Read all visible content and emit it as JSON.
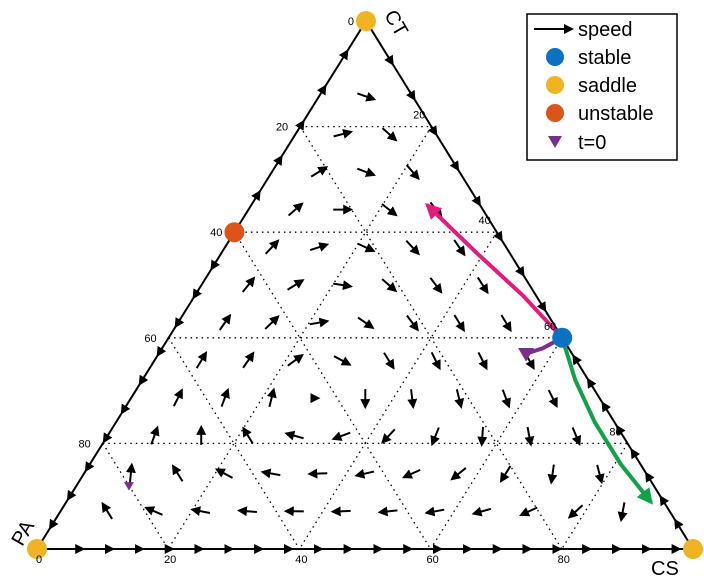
{
  "chart_data": {
    "type": "ternary",
    "axes": {
      "top": "CT",
      "left": "PA",
      "right": "CS",
      "ticks": [
        20,
        40,
        60,
        80
      ],
      "left_edge_ticks": [
        "0",
        "20",
        "40",
        "60",
        "80"
      ],
      "right_edge_ticks": [
        "80",
        "60",
        "40",
        "20"
      ],
      "bottom_edge_ticks": [
        "0",
        "20",
        "40",
        "60",
        "80"
      ],
      "grid": "dotted"
    },
    "legend": {
      "placement": "top-right",
      "entries": [
        {
          "label": "speed",
          "marker": "arrow",
          "color": "#000000"
        },
        {
          "label": "stable",
          "marker": "circle",
          "color": "#0a72c1"
        },
        {
          "label": "saddle",
          "marker": "circle",
          "color": "#f0b323"
        },
        {
          "label": "unstable",
          "marker": "circle",
          "color": "#dc5419"
        },
        {
          "label": "t=0",
          "marker": "triangle-down",
          "color": "#7b2f8c"
        }
      ]
    },
    "equilibria": [
      {
        "kind": "saddle",
        "CT": 100,
        "PA": 0,
        "CS": 0
      },
      {
        "kind": "saddle",
        "CT": 0,
        "PA": 100,
        "CS": 0
      },
      {
        "kind": "saddle",
        "CT": 0,
        "PA": 0,
        "CS": 100
      },
      {
        "kind": "unstable",
        "CT": 60,
        "PA": 40,
        "CS": 0
      },
      {
        "kind": "stable",
        "CT": 40,
        "PA": 0,
        "CS": 60
      }
    ],
    "initial_conditions": [
      {
        "CT": 37,
        "PA": 7,
        "CS": 56
      },
      {
        "CT": 12,
        "PA": 80,
        "CS": 8
      }
    ],
    "trajectories": [
      {
        "color": "#e6197d",
        "points": [
          [
            40,
            0,
            60
          ],
          [
            48,
            2,
            50
          ],
          [
            56,
            5,
            39
          ],
          [
            62,
            7,
            31
          ],
          [
            65,
            8,
            27
          ]
        ]
      },
      {
        "color": "#7b2f8c",
        "points": [
          [
            37,
            7,
            56
          ],
          [
            38,
            4,
            58
          ],
          [
            40,
            0,
            60
          ]
        ]
      },
      {
        "color": "#10a14b",
        "points": [
          [
            40,
            0,
            60
          ],
          [
            32,
            2,
            66
          ],
          [
            24,
            3,
            73
          ],
          [
            16,
            3,
            81
          ],
          [
            9,
            2,
            89
          ]
        ]
      }
    ],
    "colors": {
      "stable": "#0a72c1",
      "saddle": "#f0b323",
      "unstable": "#dc5419",
      "t0": "#7b2f8c"
    }
  }
}
